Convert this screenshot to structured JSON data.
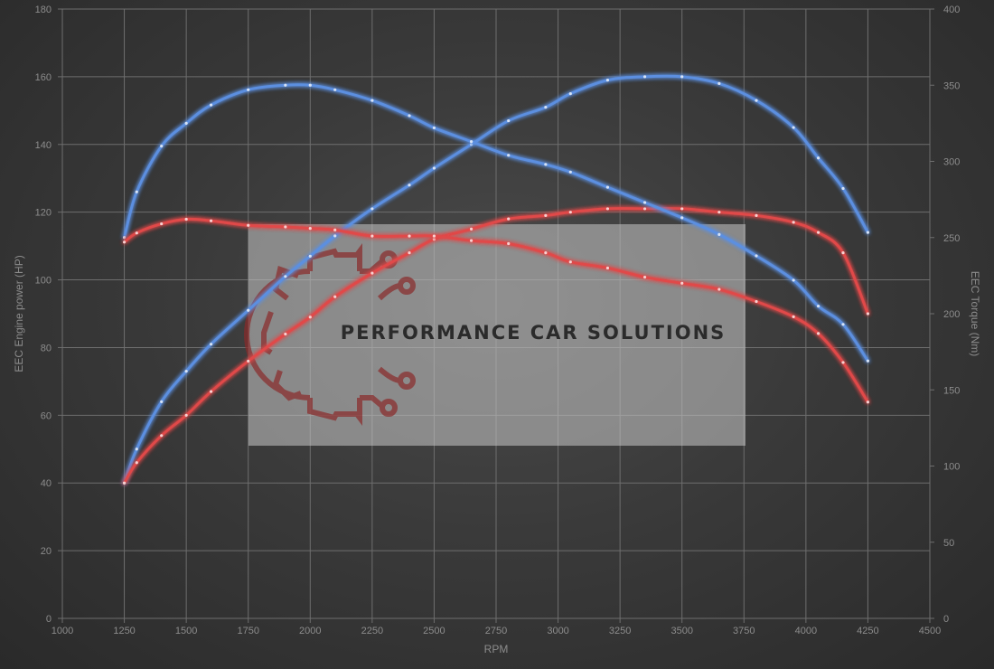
{
  "chart_data": {
    "type": "line",
    "xlabel": "RPM",
    "ylabel_left": "EEC Engine power (HP)",
    "ylabel_right": "EEC Torque (Nm)",
    "xlim": [
      1000,
      4500
    ],
    "ylim_left": [
      0,
      180
    ],
    "ylim_right": [
      0,
      400
    ],
    "x_ticks": [
      "1000",
      "1250",
      "1500",
      "1750",
      "2000",
      "2250",
      "2500",
      "2750",
      "3000",
      "3250",
      "3500",
      "3750",
      "4000",
      "4250",
      "4500"
    ],
    "y_ticks_left": [
      "0",
      "20",
      "40",
      "60",
      "80",
      "100",
      "120",
      "140",
      "160",
      "180"
    ],
    "y_ticks_right": [
      "0",
      "50",
      "100",
      "150",
      "200",
      "250",
      "300",
      "350",
      "400"
    ],
    "grid": true,
    "series": [
      {
        "axis": "left",
        "color": "#5b8fe0",
        "x": [
          1250,
          1300,
          1400,
          1500,
          1600,
          1750,
          1900,
          2000,
          2100,
          2250,
          2400,
          2500,
          2650,
          2800,
          2950,
          3050,
          3200,
          3350,
          3500,
          3650,
          3800,
          3950,
          4050,
          4150,
          4250
        ],
        "y": [
          40,
          50,
          64,
          73,
          81,
          91,
          101,
          107,
          113,
          121,
          128,
          133,
          140,
          147,
          151,
          155,
          159,
          160,
          160,
          158,
          153,
          145,
          136,
          127,
          114
        ]
      },
      {
        "axis": "left",
        "color": "#e04848",
        "x": [
          1250,
          1300,
          1400,
          1500,
          1600,
          1750,
          1900,
          2000,
          2100,
          2250,
          2400,
          2500,
          2650,
          2800,
          2950,
          3050,
          3200,
          3350,
          3500,
          3650,
          3800,
          3950,
          4050,
          4150,
          4250
        ],
        "y": [
          40,
          46,
          54,
          60,
          67,
          76,
          84,
          89,
          95,
          102,
          108,
          112,
          115,
          118,
          119,
          120,
          121,
          121,
          121,
          120,
          119,
          117,
          114,
          108,
          90
        ]
      },
      {
        "axis": "right",
        "color": "#5b8fe0",
        "x": [
          1250,
          1300,
          1400,
          1500,
          1600,
          1750,
          1900,
          2000,
          2100,
          2250,
          2400,
          2500,
          2650,
          2800,
          2950,
          3050,
          3200,
          3350,
          3500,
          3650,
          3800,
          3950,
          4050,
          4150,
          4250
        ],
        "y": [
          250,
          280,
          310,
          325,
          337,
          347,
          350,
          350,
          347,
          340,
          330,
          322,
          313,
          304,
          298,
          293,
          283,
          273,
          263,
          252,
          238,
          222,
          205,
          193,
          169
        ]
      },
      {
        "axis": "right",
        "color": "#e04848",
        "x": [
          1250,
          1300,
          1400,
          1500,
          1600,
          1750,
          1900,
          2000,
          2100,
          2250,
          2400,
          2500,
          2650,
          2800,
          2950,
          3050,
          3200,
          3350,
          3500,
          3650,
          3800,
          3950,
          4050,
          4150,
          4250
        ],
        "y": [
          247,
          253,
          259,
          262,
          261,
          258,
          257,
          256,
          255,
          251,
          251,
          251,
          248,
          246,
          240,
          234,
          230,
          224,
          220,
          216,
          208,
          198,
          187,
          168,
          142
        ]
      }
    ]
  },
  "watermark": {
    "text": "PERFORMANCE CAR SOLUTIONS"
  }
}
